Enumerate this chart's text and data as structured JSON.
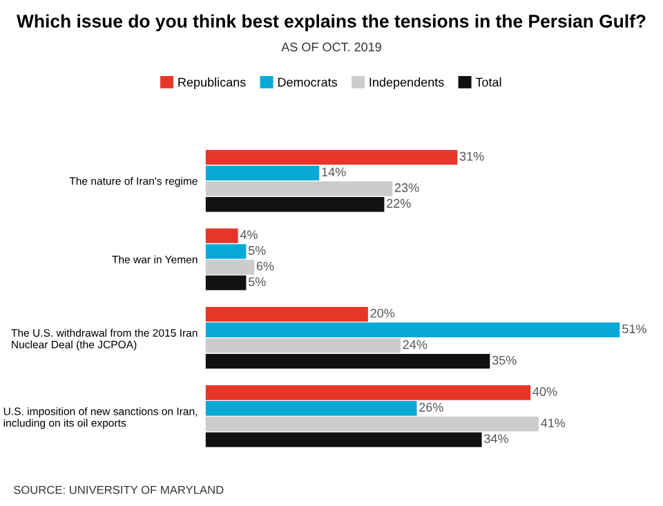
{
  "chart_data": {
    "type": "bar",
    "orientation": "horizontal",
    "title": "Which issue do you think best explains the tensions in the Persian Gulf?",
    "subtitle": "AS OF OCT. 2019",
    "categories": [
      "The nature of Iran's regime",
      "The war in Yemen",
      "The U.S. withdrawal from the 2015 Iran\nNuclear Deal (the JCPOA)",
      "U.S. imposition of new sanctions on Iran,\nincluding on its oil exports"
    ],
    "series": [
      {
        "name": "Republicans",
        "color": "#e8352a",
        "values": [
          31,
          4,
          20,
          40
        ],
        "value_labels": [
          "31%",
          "4%",
          "20%",
          "40%"
        ]
      },
      {
        "name": "Democrats",
        "color": "#08a9d6",
        "values": [
          14,
          5,
          51,
          26
        ],
        "value_labels": [
          "14%",
          "5%",
          "51%",
          "26%"
        ]
      },
      {
        "name": "Independents",
        "color": "#cccccc",
        "values": [
          23,
          6,
          24,
          41
        ],
        "value_labels": [
          "23%",
          "6%",
          "24%",
          "41%"
        ]
      },
      {
        "name": "Total",
        "color": "#111111",
        "values": [
          22,
          5,
          35,
          34
        ],
        "value_labels": [
          "22%",
          "5%",
          "35%",
          "34%"
        ]
      }
    ],
    "legend": "top",
    "grid": false,
    "tick_labels": "y",
    "annotations": [
      "SOURCE: UNIVERSITY OF MARYLAND"
    ]
  }
}
